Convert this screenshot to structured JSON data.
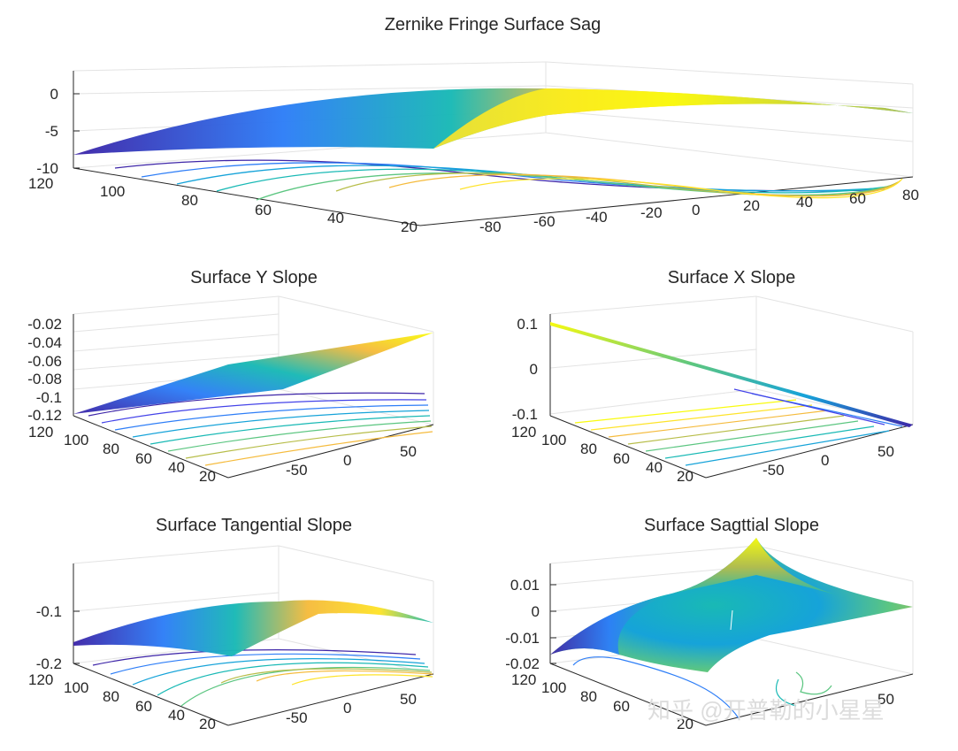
{
  "colors": {
    "colormap": "parula",
    "parula_stops": [
      "#3e26a8",
      "#4443e8",
      "#2e7ef7",
      "#16a3d9",
      "#19b9b5",
      "#5cc681",
      "#b7bd49",
      "#f5bb3d",
      "#fee32a",
      "#f9fb0e"
    ],
    "axis_line": "#262626",
    "grid": "#e3e3e3"
  },
  "watermark": "知乎 @开普勒的小星星",
  "chart_data": [
    {
      "id": "sag",
      "type": "surface",
      "title": "Zernike Fringe Surface Sag",
      "x_ticks": [
        "-80",
        "-60",
        "-40",
        "-20",
        "0",
        "20",
        "40",
        "60",
        "80"
      ],
      "y_ticks": [
        "120",
        "100",
        "80",
        "60",
        "40",
        "20"
      ],
      "z_ticks": [
        "0",
        "-5",
        "-10"
      ],
      "zlim": [
        -10,
        0
      ],
      "contour": true,
      "grid": true
    },
    {
      "id": "yslope",
      "type": "surface",
      "title": "Surface Y Slope",
      "x_ticks": [
        "-50",
        "0",
        "50"
      ],
      "y_ticks": [
        "120",
        "100",
        "80",
        "60",
        "40",
        "20"
      ],
      "z_ticks": [
        "-0.02",
        "-0.04",
        "-0.06",
        "-0.08",
        "-0.1",
        "-0.12"
      ],
      "zlim": [
        -0.12,
        -0.02
      ],
      "contour": true,
      "grid": true
    },
    {
      "id": "xslope",
      "type": "surface",
      "title": "Surface X Slope",
      "x_ticks": [
        "-50",
        "0",
        "50"
      ],
      "y_ticks": [
        "120",
        "100",
        "80",
        "60",
        "40",
        "20"
      ],
      "z_ticks": [
        "0.1",
        "0",
        "-0.1"
      ],
      "zlim": [
        -0.1,
        0.1
      ],
      "contour": true,
      "grid": true
    },
    {
      "id": "tangential",
      "type": "surface",
      "title": "Surface Tangential Slope",
      "x_ticks": [
        "-50",
        "0",
        "50"
      ],
      "y_ticks": [
        "120",
        "100",
        "80",
        "60",
        "40",
        "20"
      ],
      "z_ticks": [
        "-0.1",
        "-0.2"
      ],
      "zlim": [
        -0.2,
        -0.05
      ],
      "contour": true,
      "grid": true
    },
    {
      "id": "sagittal",
      "type": "surface",
      "title": "Surface Sagttial Slope",
      "x_ticks": [
        "50"
      ],
      "y_ticks": [
        "120",
        "100",
        "80",
        "60",
        "20"
      ],
      "z_ticks": [
        "0.01",
        "0",
        "-0.01",
        "-0.02"
      ],
      "zlim": [
        -0.02,
        0.015
      ],
      "contour": true,
      "grid": true
    }
  ]
}
